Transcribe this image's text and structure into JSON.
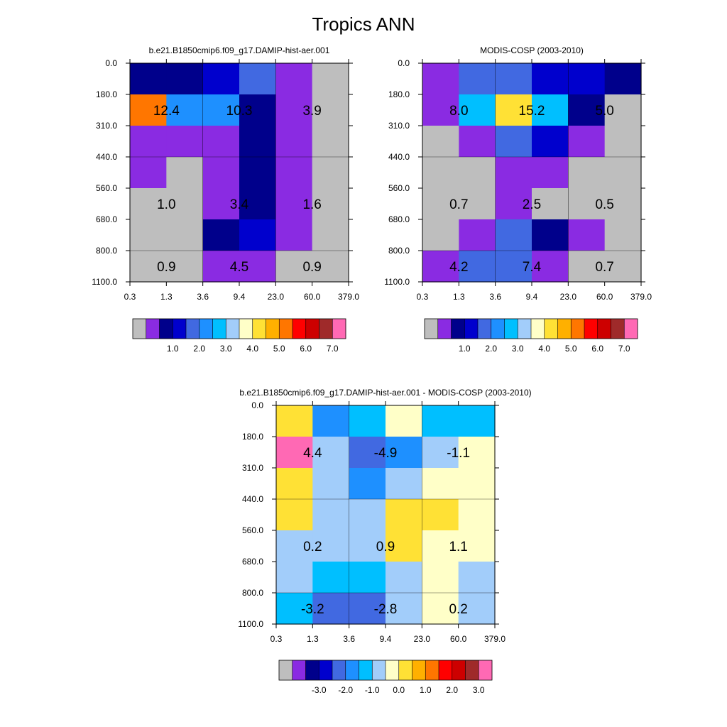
{
  "figure": {
    "title": "Tropics ANN"
  },
  "colors": {
    "missing": "#BEBEBE",
    "frame": "#000000",
    "palette_abs": [
      "#BEBEBE",
      "#8A2BE2",
      "#00008B",
      "#0000CD",
      "#4169E1",
      "#1E90FF",
      "#00BFFF",
      "#A2CDFA",
      "#FFFFC8",
      "#FFE135",
      "#FFB000",
      "#FF7600",
      "#FF0000",
      "#CD0000",
      "#9F2A2A",
      "#FF69B4"
    ],
    "palette_diff": [
      "#BEBEBE",
      "#8A2BE2",
      "#00008B",
      "#0000CD",
      "#4169E1",
      "#1E90FF",
      "#00BFFF",
      "#A2CDFA",
      "#FFFFC8",
      "#FFE135",
      "#FFB000",
      "#FF7600",
      "#FF0000",
      "#CD0000",
      "#9F2A2A",
      "#FF69B4"
    ]
  },
  "chart_data": [
    {
      "type": "heatmap",
      "title": "b.e21.B1850cmip6.f09_g17.DAMIP-hist-aer.001",
      "x_ticks": [
        "0.3",
        "1.3",
        "3.6",
        "9.4",
        "23.0",
        "60.0",
        "379.0"
      ],
      "y_ticks": [
        "0.0",
        "180.0",
        "310.0",
        "440.0",
        "560.0",
        "680.0",
        "800.0",
        "1100.0"
      ],
      "cells": [
        [
          2,
          2,
          3,
          4,
          1,
          0
        ],
        [
          11,
          5,
          5,
          2,
          1,
          0
        ],
        [
          1,
          1,
          1,
          2,
          1,
          0
        ],
        [
          1,
          0,
          1,
          2,
          1,
          0
        ],
        [
          0,
          0,
          1,
          2,
          1,
          0
        ],
        [
          0,
          0,
          2,
          3,
          1,
          0
        ],
        [
          0,
          0,
          1,
          1,
          0,
          0
        ]
      ],
      "annotations": [
        {
          "row": 1,
          "col": 1,
          "text": "12.4"
        },
        {
          "row": 1,
          "col": 3,
          "text": "10.3"
        },
        {
          "row": 1,
          "col": 5,
          "text": "3.9"
        },
        {
          "row": 4,
          "col": 1,
          "text": "1.0"
        },
        {
          "row": 4,
          "col": 3,
          "text": "3.4"
        },
        {
          "row": 4,
          "col": 5,
          "text": "1.6"
        },
        {
          "row": 6,
          "col": 1,
          "text": "0.9"
        },
        {
          "row": 6,
          "col": 3,
          "text": "4.5"
        },
        {
          "row": 6,
          "col": 5,
          "text": "0.9"
        }
      ],
      "colorbar_labels": [
        "1.0",
        "2.0",
        "3.0",
        "4.0",
        "5.0",
        "6.0",
        "7.0"
      ]
    },
    {
      "type": "heatmap",
      "title": "MODIS-COSP (2003-2010)",
      "x_ticks": [
        "0.3",
        "1.3",
        "3.6",
        "9.4",
        "23.0",
        "60.0",
        "379.0"
      ],
      "y_ticks": [
        "0.0",
        "180.0",
        "310.0",
        "440.0",
        "560.0",
        "680.0",
        "800.0",
        "1100.0"
      ],
      "cells": [
        [
          1,
          4,
          4,
          3,
          3,
          2
        ],
        [
          1,
          6,
          9,
          6,
          2,
          0
        ],
        [
          0,
          1,
          4,
          3,
          1,
          0
        ],
        [
          0,
          0,
          1,
          1,
          0,
          0
        ],
        [
          0,
          0,
          1,
          0,
          0,
          0
        ],
        [
          0,
          1,
          4,
          2,
          1,
          0
        ],
        [
          1,
          4,
          4,
          1,
          0,
          0
        ]
      ],
      "annotations": [
        {
          "row": 1,
          "col": 1,
          "text": "8.0"
        },
        {
          "row": 1,
          "col": 3,
          "text": "15.2"
        },
        {
          "row": 1,
          "col": 5,
          "text": "5.0"
        },
        {
          "row": 4,
          "col": 1,
          "text": "0.7"
        },
        {
          "row": 4,
          "col": 3,
          "text": "2.5"
        },
        {
          "row": 4,
          "col": 5,
          "text": "0.5"
        },
        {
          "row": 6,
          "col": 1,
          "text": "4.2"
        },
        {
          "row": 6,
          "col": 3,
          "text": "7.4"
        },
        {
          "row": 6,
          "col": 5,
          "text": "0.7"
        }
      ],
      "colorbar_labels": [
        "1.0",
        "2.0",
        "3.0",
        "4.0",
        "5.0",
        "6.0",
        "7.0"
      ]
    },
    {
      "type": "heatmap",
      "title": "b.e21.B1850cmip6.f09_g17.DAMIP-hist-aer.001 - MODIS-COSP (2003-2010)",
      "x_ticks": [
        "0.3",
        "1.3",
        "3.6",
        "9.4",
        "23.0",
        "60.0",
        "379.0"
      ],
      "y_ticks": [
        "0.0",
        "180.0",
        "310.0",
        "440.0",
        "560.0",
        "680.0",
        "800.0",
        "1100.0"
      ],
      "cells": [
        [
          9,
          5,
          6,
          8,
          6,
          6
        ],
        [
          15,
          7,
          4,
          5,
          7,
          8
        ],
        [
          9,
          7,
          5,
          7,
          8,
          8
        ],
        [
          9,
          7,
          7,
          9,
          9,
          8
        ],
        [
          7,
          7,
          7,
          9,
          8,
          8
        ],
        [
          7,
          6,
          6,
          7,
          8,
          7
        ],
        [
          6,
          4,
          4,
          7,
          8,
          7
        ]
      ],
      "annotations": [
        {
          "row": 1,
          "col": 1,
          "text": "4.4"
        },
        {
          "row": 1,
          "col": 3,
          "text": "-4.9"
        },
        {
          "row": 1,
          "col": 5,
          "text": "-1.1"
        },
        {
          "row": 4,
          "col": 1,
          "text": "0.2"
        },
        {
          "row": 4,
          "col": 3,
          "text": "0.9"
        },
        {
          "row": 4,
          "col": 5,
          "text": "1.1"
        },
        {
          "row": 6,
          "col": 1,
          "text": "-3.2"
        },
        {
          "row": 6,
          "col": 3,
          "text": "-2.8"
        },
        {
          "row": 6,
          "col": 5,
          "text": "0.2"
        }
      ],
      "colorbar_labels": [
        "-3.0",
        "-2.0",
        "-1.0",
        "0.0",
        "1.0",
        "2.0",
        "3.0"
      ]
    }
  ]
}
